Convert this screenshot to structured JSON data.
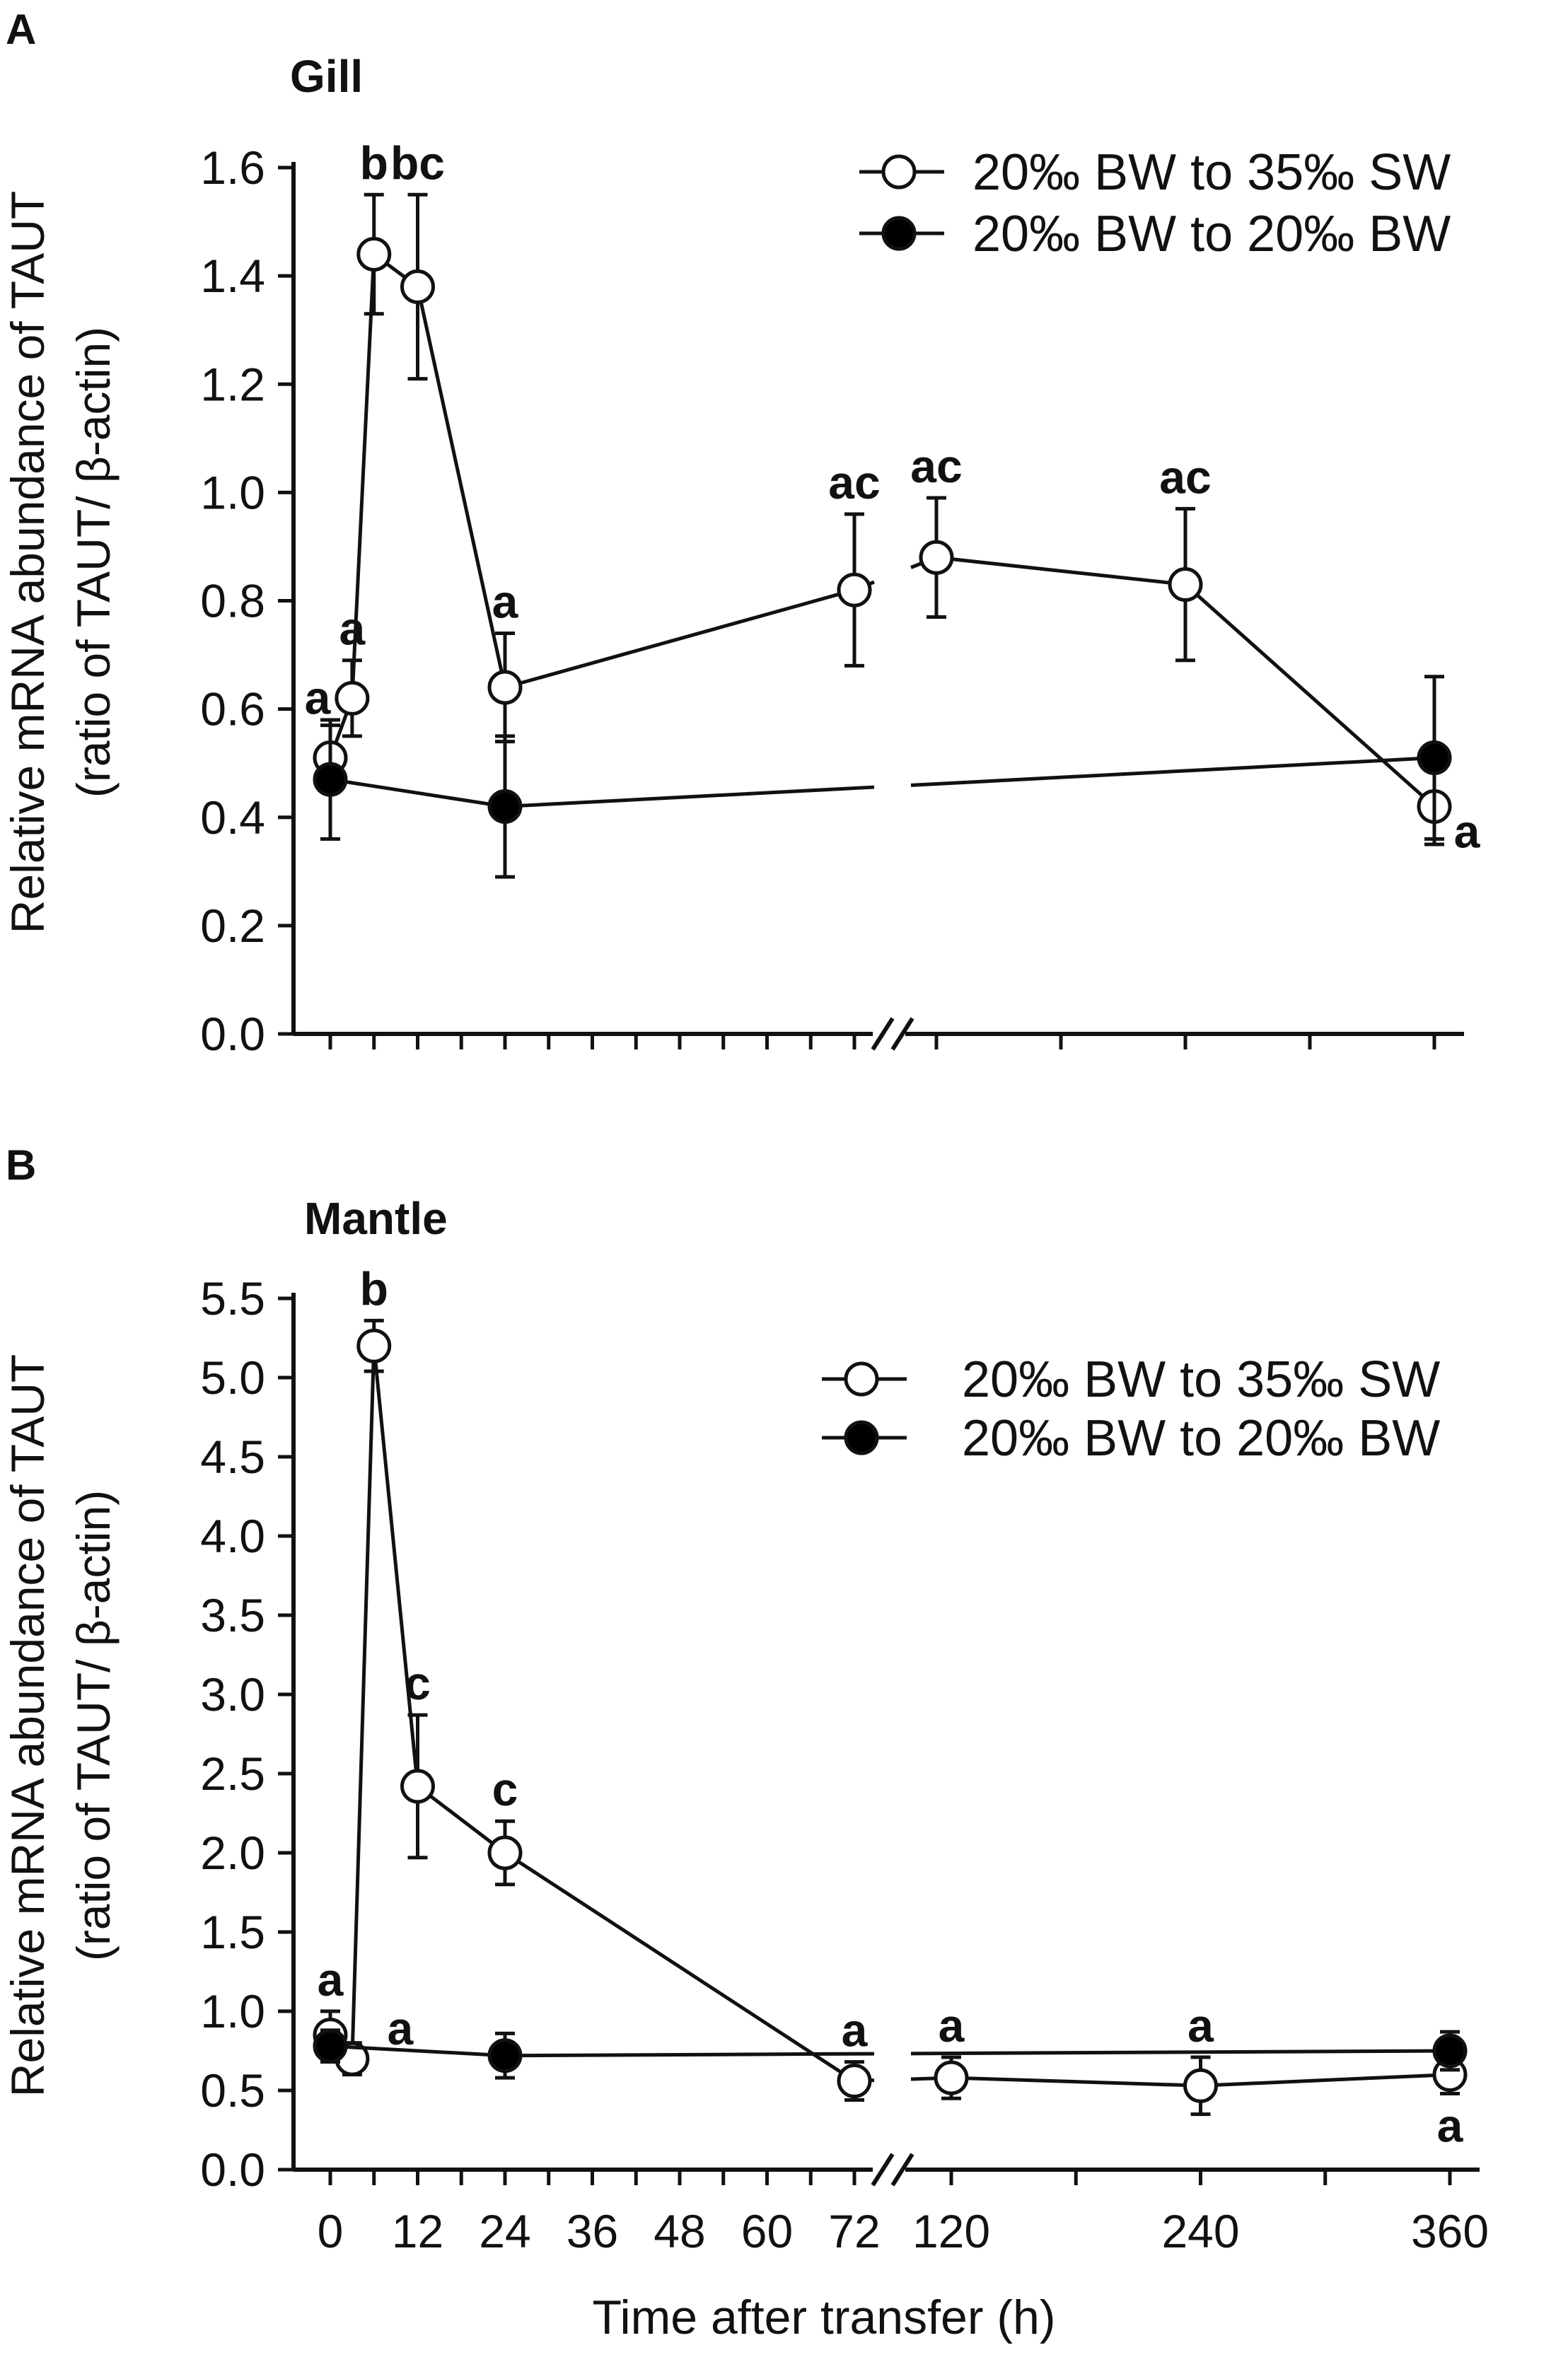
{
  "chart_data": [
    {
      "type": "line",
      "panel": "A",
      "title": "Gill",
      "ylabel_line1": "Relative mRNA abundance of TAUT",
      "ylabel_line2": "(ratio of TAUT/ β-actin)",
      "xlabel": "",
      "ylim": [
        0,
        1.6
      ],
      "y_ticks": [
        0.0,
        0.2,
        0.4,
        0.6,
        0.8,
        1.0,
        1.2,
        1.4,
        1.6
      ],
      "y_tick_labels": [
        "0.0",
        "0.2",
        "0.4",
        "0.6",
        "0.8",
        "1.0",
        "1.2",
        "1.4",
        "1.6"
      ],
      "x_ticks_left": [
        0,
        6,
        12,
        18,
        24,
        30,
        36,
        42,
        48,
        54,
        60,
        66,
        72
      ],
      "x_ticks_right": [
        120,
        180,
        240,
        300,
        360
      ],
      "axis_break": true,
      "legend_position": "top-right",
      "series": [
        {
          "name": "20‰ BW to 35‰ SW",
          "marker": "open-circle",
          "x": [
            0,
            3,
            6,
            12,
            24,
            72,
            120,
            240,
            360
          ],
          "y": [
            0.51,
            0.62,
            1.44,
            1.38,
            0.64,
            0.82,
            0.88,
            0.83,
            0.42
          ],
          "error": [
            0.06,
            0.07,
            0.11,
            0.17,
            0.1,
            0.14,
            0.11,
            0.14,
            0.07
          ],
          "labels": [
            "a",
            "a",
            "b",
            "bc",
            "a",
            "ac",
            "ac",
            "ac",
            "a"
          ],
          "label_pos": [
            "upleft",
            "up",
            "up",
            "up",
            "up",
            "up",
            "up",
            "up",
            "downright"
          ]
        },
        {
          "name": "20‰ BW to 20‰ BW",
          "marker": "filled-circle",
          "x": [
            0,
            24,
            360
          ],
          "y": [
            0.47,
            0.42,
            0.51
          ],
          "error": [
            0.11,
            0.13,
            0.15
          ]
        }
      ]
    },
    {
      "type": "line",
      "panel": "B",
      "title": "Mantle",
      "ylabel_line1": "Relative mRNA abundance of TAUT",
      "ylabel_line2": "(ratio of TAUT/ β-actin)",
      "xlabel": "Time after transfer (h)",
      "ylim": [
        0,
        5.5
      ],
      "y_ticks": [
        0.0,
        0.5,
        1.0,
        1.5,
        2.0,
        2.5,
        3.0,
        3.5,
        4.0,
        4.5,
        5.0,
        5.5
      ],
      "y_tick_labels": [
        "0.0",
        "0.5",
        "1.0",
        "1.5",
        "2.0",
        "2.5",
        "3.0",
        "3.5",
        "4.0",
        "4.5",
        "5.0",
        "5.5"
      ],
      "x_ticks_left": [
        0,
        6,
        12,
        18,
        24,
        30,
        36,
        42,
        48,
        54,
        60,
        66,
        72
      ],
      "x_tick_labels_left": [
        "0",
        "12",
        "24",
        "36",
        "48",
        "60",
        "72"
      ],
      "x_ticks_right": [
        120,
        180,
        240,
        300,
        360
      ],
      "x_tick_labels_right": [
        "120",
        "240",
        "360"
      ],
      "axis_break": true,
      "legend_position": "top-right",
      "series": [
        {
          "name": "20‰ BW to 35‰ SW",
          "marker": "open-circle",
          "x": [
            0,
            3,
            6,
            12,
            24,
            72,
            120,
            240,
            360
          ],
          "y": [
            0.85,
            0.7,
            5.2,
            2.42,
            2.0,
            0.56,
            0.58,
            0.53,
            0.6
          ],
          "error": [
            0.15,
            0.1,
            0.16,
            0.45,
            0.2,
            0.12,
            0.13,
            0.18,
            0.12
          ],
          "labels": [
            "a",
            "a",
            "b",
            "c",
            "c",
            "a",
            "a",
            "a",
            "a"
          ],
          "label_pos": [
            "up",
            "right",
            "up",
            "up",
            "up",
            "up",
            "up",
            "up",
            "down"
          ]
        },
        {
          "name": "20‰ BW to 20‰ BW",
          "marker": "filled-circle",
          "x": [
            0,
            24,
            360
          ],
          "y": [
            0.78,
            0.72,
            0.75
          ],
          "error": [
            0.1,
            0.14,
            0.12
          ]
        }
      ]
    }
  ]
}
